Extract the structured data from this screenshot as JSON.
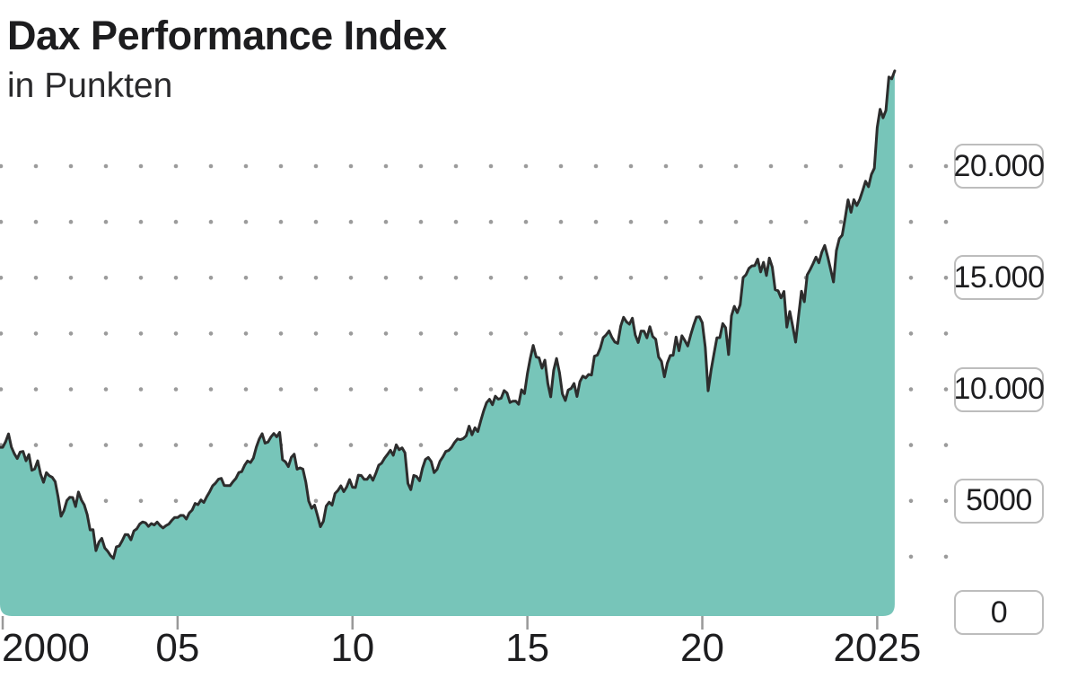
{
  "header": {
    "title": "Dax Performance Index",
    "subtitle": "in Punkten"
  },
  "colors": {
    "background": "#ffffff",
    "area_fill": "#77c5b9",
    "line": "#2d2d2d",
    "grid_dot": "#9b9b9b",
    "axis_tick": "#999999",
    "label_box_border": "#bdbdbd",
    "label_box_background": "#ffffff",
    "text": "#1d1d1f"
  },
  "chart_data": {
    "type": "area",
    "title": "Dax Performance Index",
    "subtitle": "in Punkten",
    "unit": "Punkte",
    "legend": "none",
    "grid": "dotted",
    "x_axis": {
      "tick_labels": [
        "2000",
        "05",
        "10",
        "15",
        "20",
        "2025"
      ],
      "tick_years": [
        2000,
        2005,
        2010,
        2015,
        2020,
        2025
      ],
      "range_years": [
        2000,
        2025.5
      ]
    },
    "y_axis": {
      "tick_labels": [
        "20.000",
        "15.000",
        "10.000",
        "5000",
        "0"
      ],
      "tick_values": [
        20000,
        15000,
        10000,
        5000,
        0
      ],
      "minor_grid_step": 2500,
      "grid_row_values": [
        20000,
        17500,
        15000,
        12500,
        10000,
        7500,
        5000,
        2500
      ],
      "ylim": [
        0,
        24500
      ]
    },
    "series_name": "Dax Performance Index",
    "series_start": "2000-01",
    "series_end": "2025-07",
    "frequency": "monthly",
    "values_by_year": {
      "2000": [
        7400,
        7644,
        7999,
        7414,
        7109,
        6898,
        7190,
        7216,
        6798,
        7077,
        6372,
        6434
      ],
      "2001": [
        6795,
        6208,
        5830,
        6265,
        6123,
        6058,
        5861,
        5188,
        4308,
        4559,
        5015,
        5160
      ],
      "2002": [
        5151,
        4745,
        5397,
        5041,
        4818,
        4383,
        3700,
        3712,
        2769,
        3152,
        3320,
        2893
      ],
      "2003": [
        2748,
        2547,
        2424,
        2942,
        2982,
        3221,
        3487,
        3484,
        3256,
        3655,
        3746,
        3965
      ],
      "2004": [
        4058,
        4018,
        3857,
        3985,
        3921,
        4053,
        3896,
        3785,
        3893,
        3960,
        4126,
        4256
      ],
      "2005": [
        4254,
        4350,
        4348,
        4184,
        4460,
        4586,
        4886,
        4830,
        5044,
        4929,
        5193,
        5408
      ],
      "2006": [
        5674,
        5796,
        5970,
        6009,
        5692,
        5683,
        5682,
        5859,
        6004,
        6269,
        6309,
        6597
      ],
      "2007": [
        6789,
        6715,
        6917,
        7409,
        7765,
        8007,
        7584,
        7638,
        7861,
        8019,
        7870,
        8067
      ],
      "2008": [
        6851,
        6748,
        6535,
        6948,
        7096,
        6418,
        6479,
        6422,
        5831,
        4987,
        4669,
        4810
      ],
      "2009": [
        4338,
        3844,
        4085,
        4769,
        4941,
        4809,
        5332,
        5464,
        5675,
        5414,
        5626,
        5957
      ],
      "2010": [
        5609,
        5598,
        6154,
        6136,
        5964,
        5966,
        6148,
        5925,
        6229,
        6601,
        6688,
        6914
      ],
      "2011": [
        7077,
        7272,
        7041,
        7514,
        7293,
        7376,
        7159,
        5785,
        5502,
        6141,
        6088,
        5898
      ],
      "2012": [
        6459,
        6856,
        6947,
        6761,
        6264,
        6416,
        6772,
        6971,
        7216,
        7260,
        7406,
        7612
      ],
      "2013": [
        7776,
        7741,
        7795,
        7914,
        8349,
        7959,
        8276,
        8103,
        8594,
        9034,
        9405,
        9552
      ],
      "2014": [
        9306,
        9692,
        9556,
        9603,
        9943,
        9833,
        9407,
        9470,
        9474,
        9327,
        9981,
        9806
      ],
      "2015": [
        10694,
        11402,
        11966,
        11454,
        11414,
        10945,
        11309,
        10259,
        9660,
        10850,
        11382,
        10743
      ],
      "2016": [
        9798,
        9495,
        9966,
        10039,
        10263,
        9680,
        10337,
        10593,
        10511,
        10665,
        10640,
        11481
      ],
      "2017": [
        11535,
        11834,
        12313,
        12438,
        12615,
        12325,
        12118,
        12056,
        12829,
        13229,
        13024,
        12918
      ],
      "2018": [
        13189,
        12436,
        12097,
        12612,
        12604,
        12306,
        12806,
        12364,
        12247,
        11447,
        11257,
        10559
      ],
      "2019": [
        11173,
        11515,
        11526,
        12344,
        11727,
        12399,
        12189,
        11939,
        12428,
        12867,
        13236,
        13249
      ],
      "2020": [
        12982,
        11890,
        9936,
        10862,
        11587,
        12311,
        12313,
        12945,
        12761,
        11556,
        13291,
        13719
      ],
      "2021": [
        13432,
        13786,
        15008,
        15136,
        15421,
        15531,
        15544,
        15835,
        15261,
        15689,
        15100,
        15885
      ],
      "2022": [
        15471,
        14461,
        14415,
        14098,
        14388,
        12784,
        13484,
        12835,
        12114,
        13254,
        14397,
        13924
      ],
      "2023": [
        15128,
        15365,
        15629,
        15922,
        15664,
        16148,
        16447,
        15947,
        15387,
        14810,
        16215,
        16752
      ],
      "2024": [
        16904,
        17678,
        18492,
        17932,
        18498,
        18235,
        18509,
        18907,
        19325,
        19078,
        19626,
        19909
      ],
      "2025": [
        21732,
        22551,
        22163,
        22497,
        23997,
        23910,
        24270
      ]
    }
  }
}
